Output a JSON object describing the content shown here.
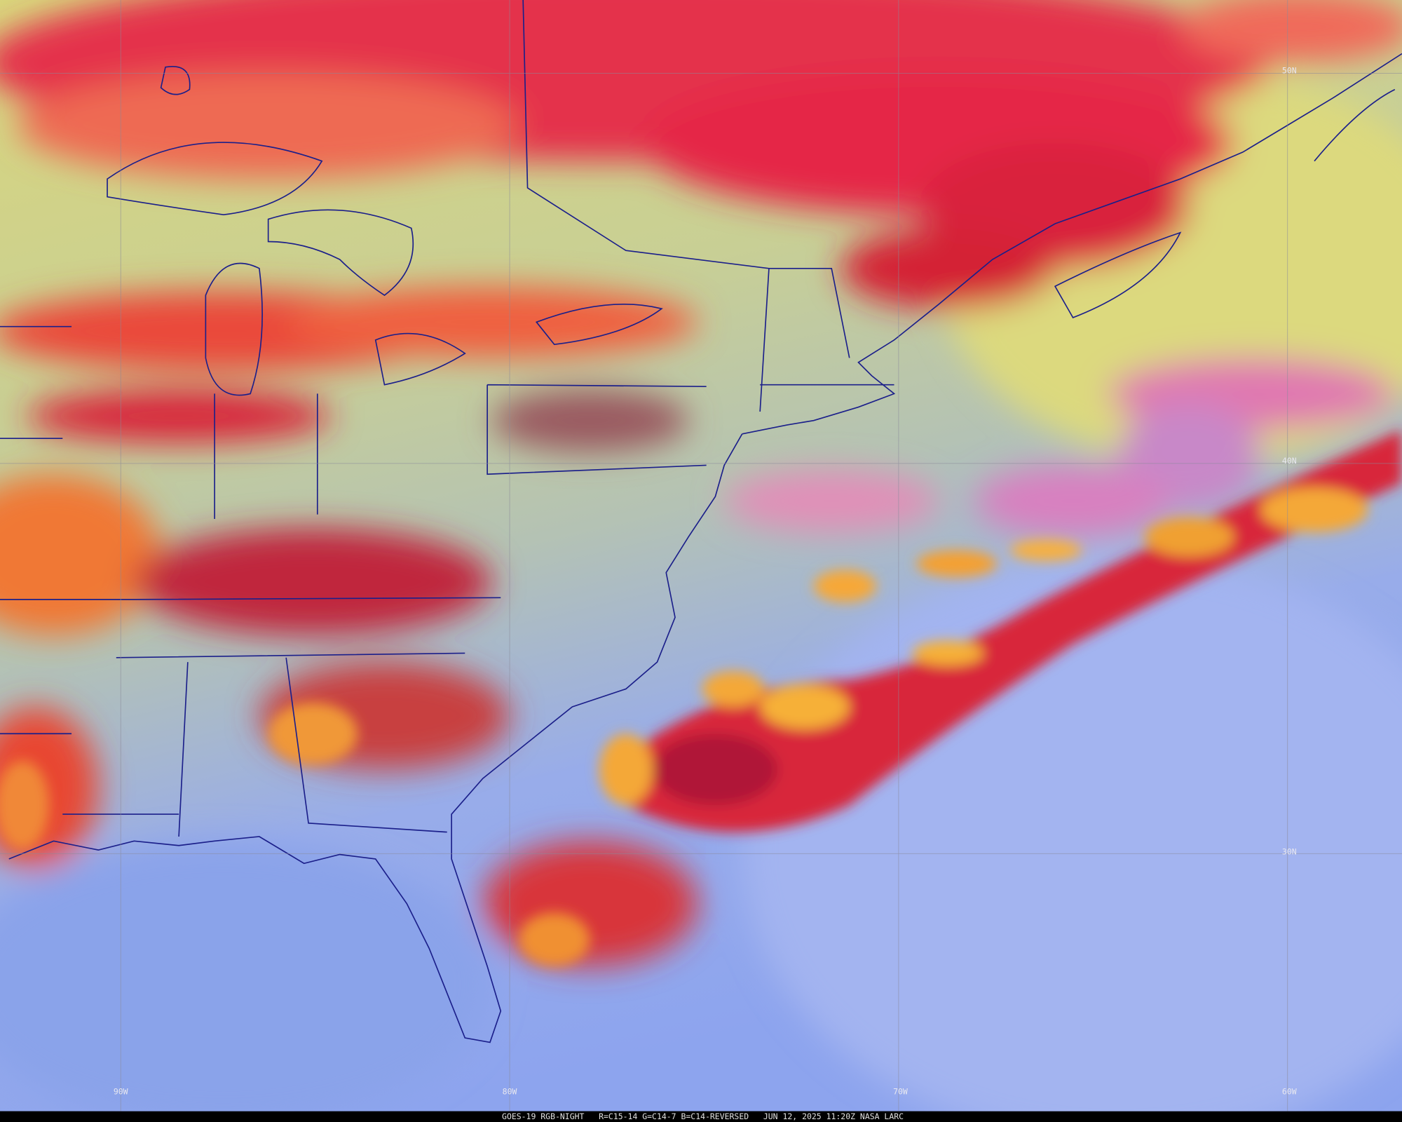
{
  "map": {
    "latitude_labels": [
      "50N",
      "40N",
      "30N"
    ],
    "longitude_labels": [
      "90W",
      "80W",
      "70W",
      "60W"
    ],
    "footer": "GOES-19 RGB-NIGHT   R=C15-14 G=C14-7 B=C14-REVERSED   JUN 12, 2025 11:20Z NASA LARC"
  }
}
